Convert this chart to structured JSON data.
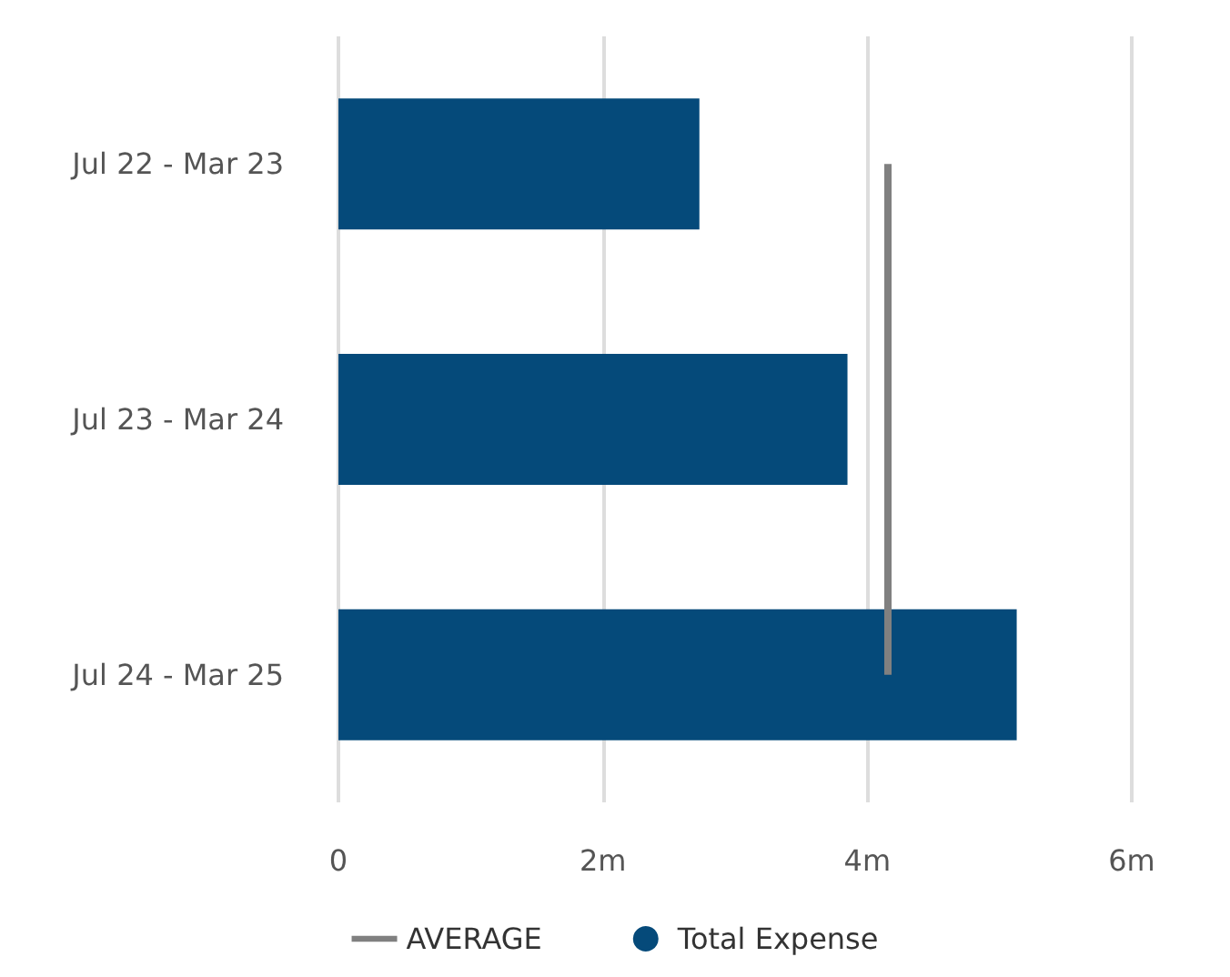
{
  "chart_data": {
    "type": "bar",
    "orientation": "horizontal",
    "categories": [
      "Jul 22 - Mar 23",
      "Jul 23 - Mar 24",
      "Jul 24 - Mar 25"
    ],
    "series": [
      {
        "name": "Total Expense",
        "color": "#054a7a",
        "values": [
          2.73,
          3.85,
          5.13
        ]
      }
    ],
    "xlim": [
      0,
      6
    ],
    "xticks": [
      {
        "value": 0,
        "label": "0"
      },
      {
        "value": 2,
        "label": "2m"
      },
      {
        "value": 4,
        "label": "4m"
      },
      {
        "value": 6,
        "label": "6m"
      }
    ],
    "ref_lines": [
      {
        "axis": "x",
        "value": 4.15,
        "label": "AVERAGE",
        "color": "#808080"
      }
    ],
    "grid": "x",
    "legend": "bottom"
  }
}
